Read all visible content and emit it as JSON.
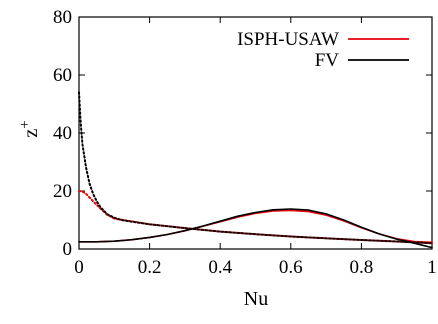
{
  "chart_data": {
    "type": "line",
    "xlabel": "Nu",
    "ylabel": "z",
    "ylabel_sup": "+",
    "xlim": [
      0,
      1
    ],
    "ylim": [
      0,
      80
    ],
    "xticks": [
      0,
      0.2,
      0.4,
      0.6,
      0.8,
      1
    ],
    "xtick_labels": [
      "0",
      "0.2",
      "0.4",
      "0.6",
      "0.8",
      "1"
    ],
    "yticks": [
      0,
      20,
      40,
      60,
      80
    ],
    "ytick_labels": [
      "0",
      "20",
      "40",
      "60",
      "80"
    ],
    "grid": false,
    "legend_position": "top-right",
    "series": [
      {
        "name": "ISPH-USAW",
        "color": "#e8000b",
        "line_style": "solid",
        "x": [
          0.0,
          0.05,
          0.1,
          0.15,
          0.2,
          0.25,
          0.3,
          0.35,
          0.4,
          0.45,
          0.5,
          0.55,
          0.6,
          0.65,
          0.7,
          0.75,
          0.8,
          0.85,
          0.9,
          0.95,
          1.0
        ],
        "y": [
          2.5,
          2.5,
          2.7,
          3.2,
          4.0,
          5.0,
          6.3,
          7.8,
          9.4,
          11.0,
          12.3,
          13.1,
          13.3,
          12.9,
          11.7,
          9.7,
          7.3,
          5.2,
          3.5,
          2.6,
          2.3
        ]
      },
      {
        "name": "ISPH-USAW",
        "color": "#e8000b",
        "line_style": "dotted",
        "x": [
          0.0,
          0.01,
          0.02,
          0.04,
          0.06,
          0.08,
          0.1,
          0.15,
          0.2,
          0.3,
          0.4,
          0.5,
          0.6,
          0.7,
          0.8,
          0.9,
          1.0
        ],
        "y": [
          20.0,
          19.8,
          19.0,
          16.5,
          14.0,
          11.8,
          10.5,
          9.5,
          8.5,
          7.2,
          6.0,
          5.1,
          4.3,
          3.7,
          3.1,
          2.6,
          2.0
        ]
      },
      {
        "name": "FV",
        "color": "#000000",
        "line_style": "solid",
        "x": [
          0.0,
          0.05,
          0.1,
          0.15,
          0.2,
          0.25,
          0.3,
          0.35,
          0.4,
          0.45,
          0.5,
          0.55,
          0.6,
          0.65,
          0.7,
          0.75,
          0.8,
          0.85,
          0.9,
          0.95,
          1.0
        ],
        "y": [
          2.5,
          2.5,
          2.7,
          3.2,
          4.0,
          5.0,
          6.3,
          7.9,
          9.6,
          11.3,
          12.6,
          13.5,
          13.8,
          13.4,
          12.1,
          10.0,
          7.5,
          5.2,
          3.4,
          2.0,
          0.5
        ]
      },
      {
        "name": "FV",
        "color": "#000000",
        "line_style": "dotted",
        "x": [
          0.0,
          0.005,
          0.01,
          0.02,
          0.03,
          0.04,
          0.05,
          0.06,
          0.08,
          0.1,
          0.12,
          0.15,
          0.2,
          0.3,
          0.4,
          0.5,
          0.6,
          0.7,
          0.8,
          0.9,
          1.0
        ],
        "y": [
          54.0,
          43.0,
          36.0,
          28.0,
          22.5,
          19.0,
          16.5,
          14.5,
          12.0,
          10.8,
          10.0,
          9.4,
          8.5,
          7.2,
          6.0,
          5.1,
          4.3,
          3.7,
          3.1,
          2.6,
          2.0
        ]
      }
    ],
    "legend": [
      {
        "label": "ISPH-USAW",
        "color": "#e8000b"
      },
      {
        "label": "FV",
        "color": "#000000"
      }
    ]
  }
}
